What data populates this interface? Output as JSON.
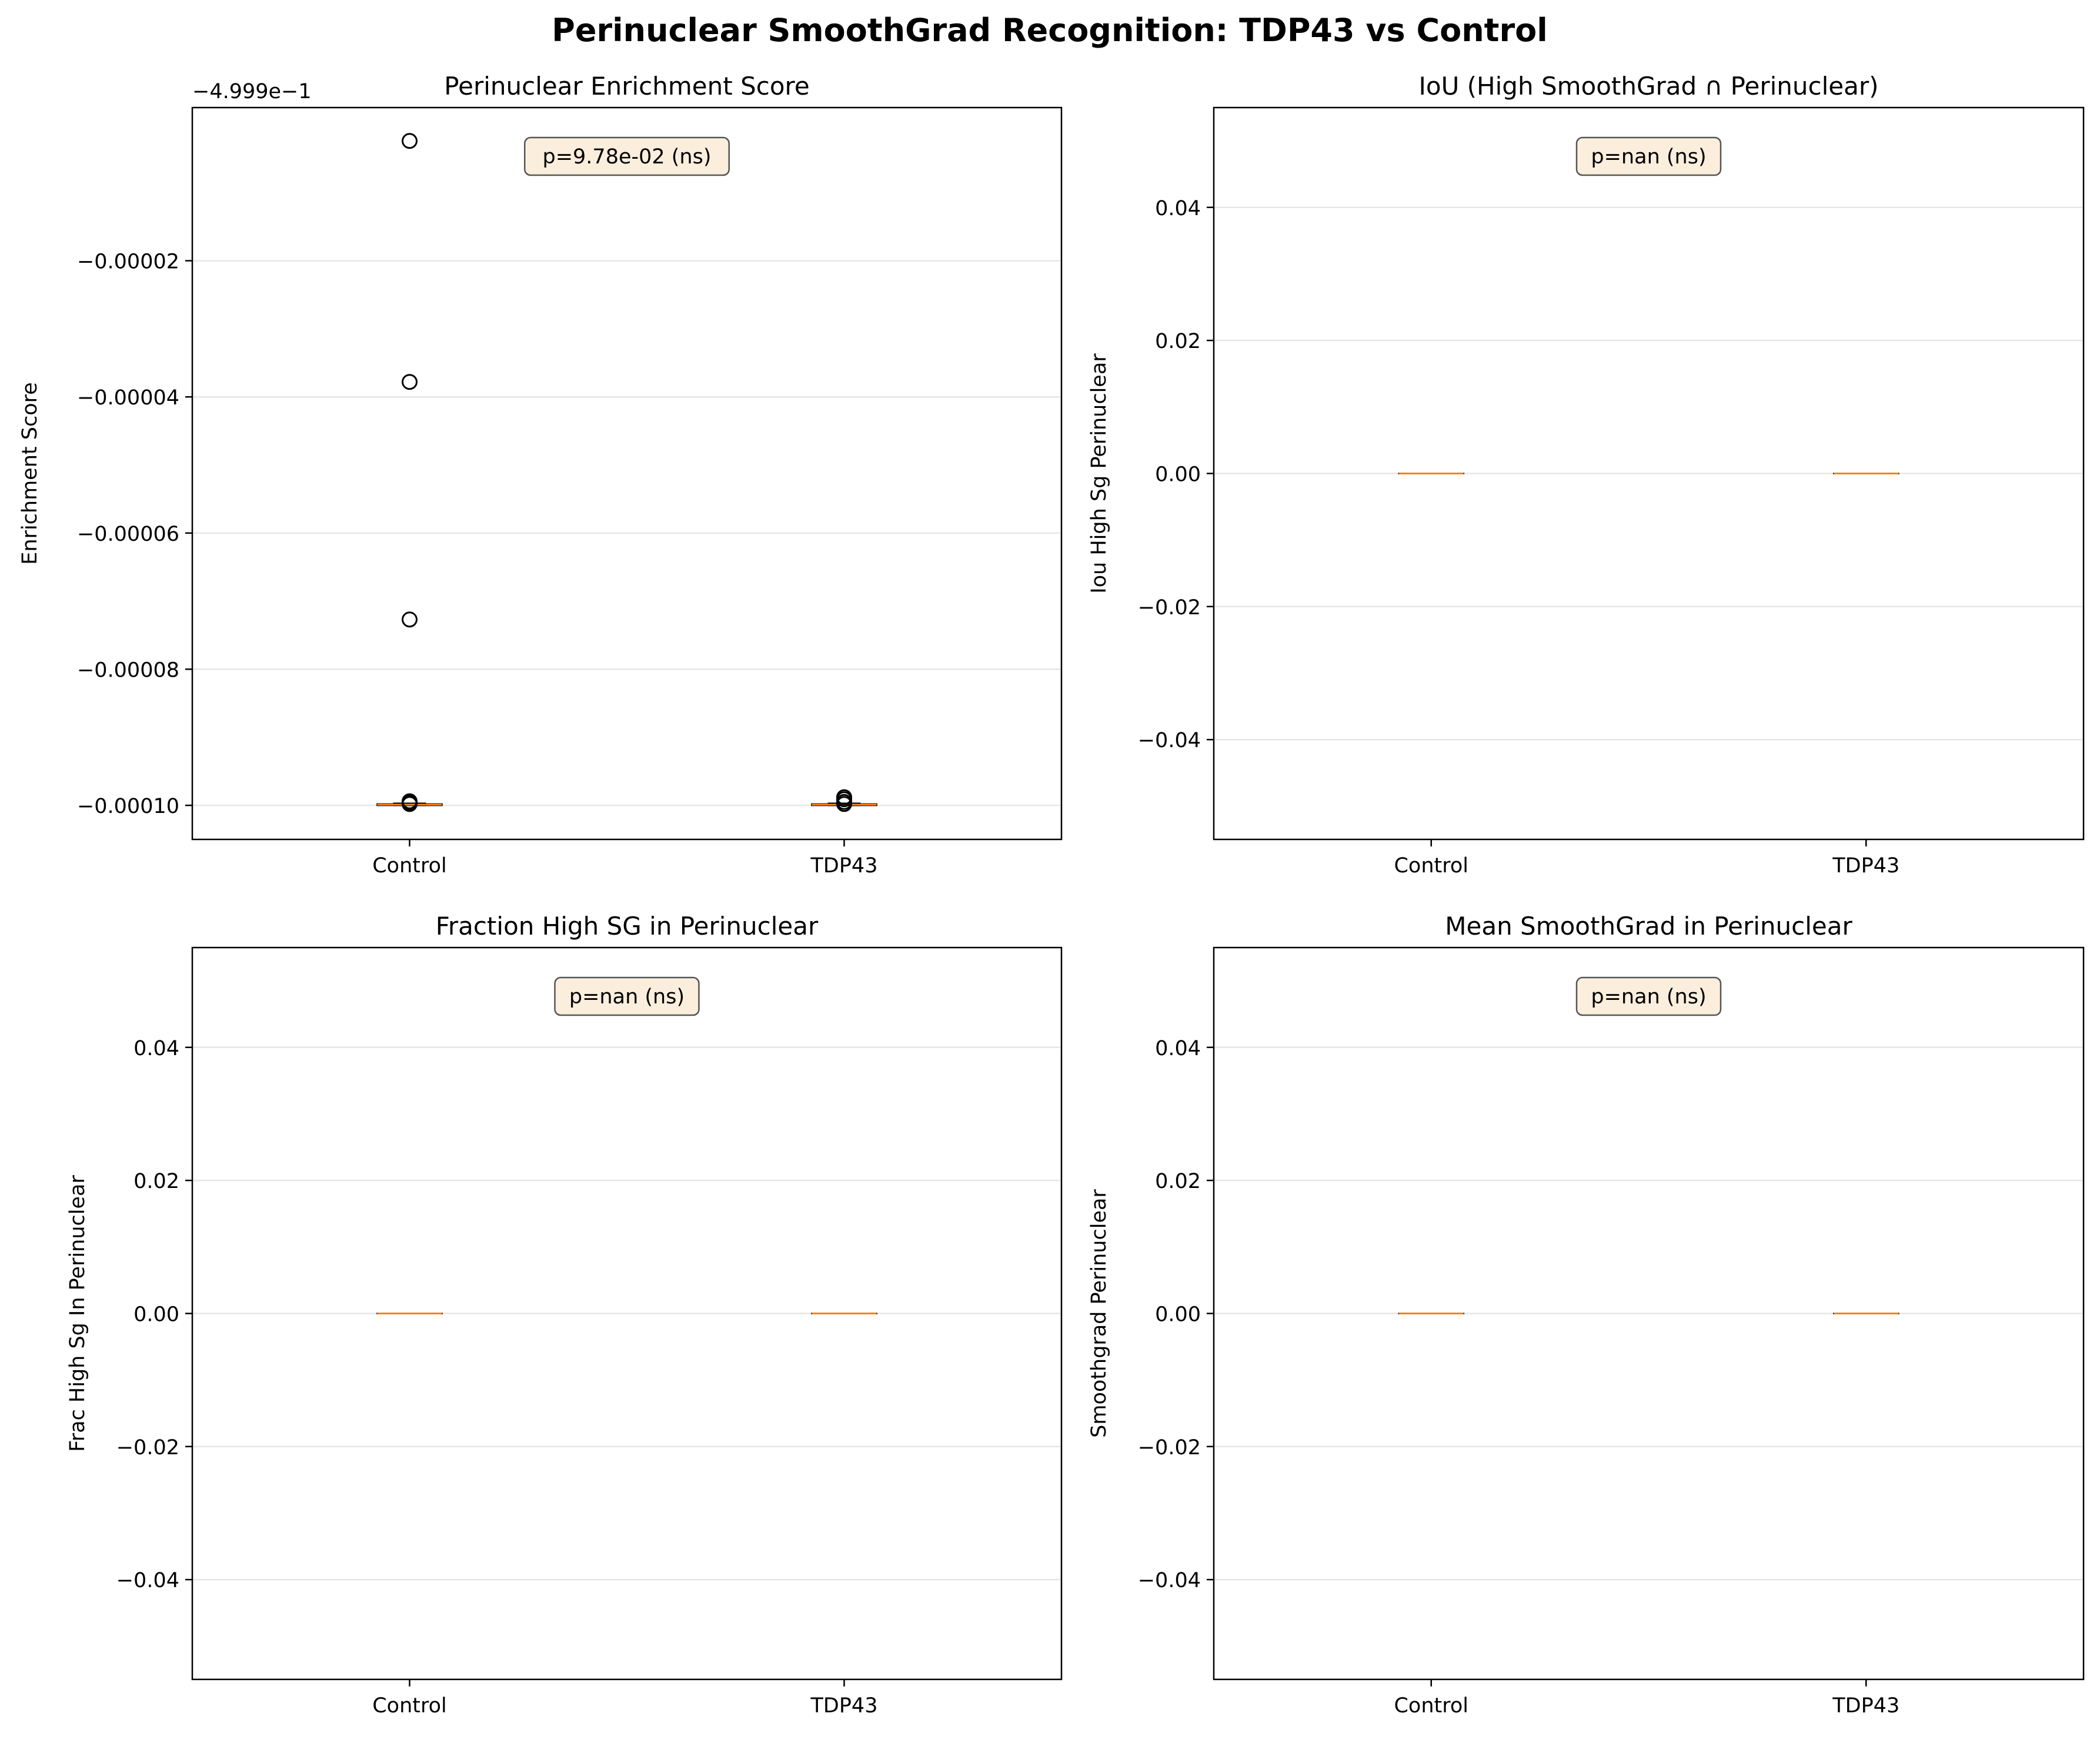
{
  "suptitle": "Perinuclear SmoothGrad Recognition: TDP43 vs Control",
  "colors": {
    "median": "#ff7f0e",
    "grid": "#e6e6e6",
    "annot_fill": "#fbeedd",
    "annot_edge": "#555555",
    "axis": "#000000"
  },
  "chart_data": [
    {
      "type": "box",
      "title": "Perinuclear Enrichment Score",
      "ylabel": "Enrichment Score",
      "offset_label": "−4.999e−1",
      "categories": [
        "Control",
        "TDP43"
      ],
      "ylim": [
        -0.000105,
        2.5e-06
      ],
      "yticks": [
        -2e-05,
        -4e-05,
        -6e-05,
        -8e-05,
        -0.0001
      ],
      "ytick_labels": [
        "−0.00002",
        "−0.00004",
        "−0.00006",
        "−0.00008",
        "−0.00010"
      ],
      "annotation": "p=9.78e-02 (ns)",
      "boxes": [
        {
          "q1": -0.0001,
          "median": -9.99e-05,
          "q3": -9.98e-05,
          "whislo": -0.0001,
          "whishi": -9.97e-05,
          "fliers": [
            -2.4e-06,
            -3.78e-05,
            -7.27e-05,
            -9.94e-05,
            -9.98e-05,
            -9.96e-05
          ]
        },
        {
          "q1": -0.0001,
          "median": -9.99e-05,
          "q3": -9.98e-05,
          "whislo": -0.0001,
          "whishi": -9.97e-05,
          "fliers": [
            -9.88e-05,
            -9.91e-05,
            -9.95e-05,
            -9.98e-05
          ]
        }
      ]
    },
    {
      "type": "box",
      "title": "IoU (High SmoothGrad ∩ Perinuclear)",
      "ylabel": "Iou High Sg Perinuclear",
      "categories": [
        "Control",
        "TDP43"
      ],
      "ylim": [
        -0.055,
        0.055
      ],
      "yticks": [
        0.04,
        0.02,
        0.0,
        -0.02,
        -0.04
      ],
      "ytick_labels": [
        "0.04",
        "0.02",
        "0.00",
        "−0.02",
        "−0.04"
      ],
      "annotation": "p=nan (ns)",
      "boxes": [
        {
          "q1": 0,
          "median": 0,
          "q3": 0,
          "whislo": 0,
          "whishi": 0,
          "fliers": []
        },
        {
          "q1": 0,
          "median": 0,
          "q3": 0,
          "whislo": 0,
          "whishi": 0,
          "fliers": []
        }
      ]
    },
    {
      "type": "box",
      "title": "Fraction High SG in Perinuclear",
      "ylabel": "Frac High Sg In Perinuclear",
      "categories": [
        "Control",
        "TDP43"
      ],
      "ylim": [
        -0.055,
        0.055
      ],
      "yticks": [
        0.04,
        0.02,
        0.0,
        -0.02,
        -0.04
      ],
      "ytick_labels": [
        "0.04",
        "0.02",
        "0.00",
        "−0.02",
        "−0.04"
      ],
      "annotation": "p=nan (ns)",
      "boxes": [
        {
          "q1": 0,
          "median": 0,
          "q3": 0,
          "whislo": 0,
          "whishi": 0,
          "fliers": []
        },
        {
          "q1": 0,
          "median": 0,
          "q3": 0,
          "whislo": 0,
          "whishi": 0,
          "fliers": []
        }
      ]
    },
    {
      "type": "box",
      "title": "Mean SmoothGrad in Perinuclear",
      "ylabel": "Smoothgrad Perinuclear",
      "categories": [
        "Control",
        "TDP43"
      ],
      "ylim": [
        -0.055,
        0.055
      ],
      "yticks": [
        0.04,
        0.02,
        0.0,
        -0.02,
        -0.04
      ],
      "ytick_labels": [
        "0.04",
        "0.02",
        "0.00",
        "−0.02",
        "−0.04"
      ],
      "annotation": "p=nan (ns)",
      "boxes": [
        {
          "q1": 0,
          "median": 0,
          "q3": 0,
          "whislo": 0,
          "whishi": 0,
          "fliers": []
        },
        {
          "q1": 0,
          "median": 0,
          "q3": 0,
          "whislo": 0,
          "whishi": 0,
          "fliers": []
        }
      ]
    }
  ]
}
